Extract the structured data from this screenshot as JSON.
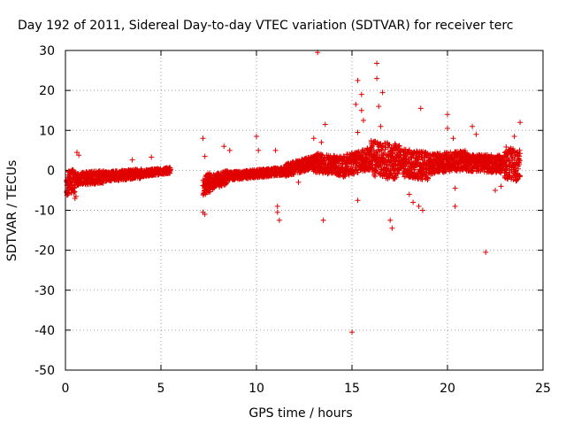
{
  "chart_data": {
    "type": "scatter",
    "title": "Day 192 of 2011, Sidereal Day-to-day VTEC variation (SDTVAR) for receiver terc",
    "xlabel": "GPS time / hours",
    "ylabel": "SDTVAR / TECUs",
    "xlim": [
      0,
      25
    ],
    "ylim": [
      -50,
      30
    ],
    "xticks": [
      0,
      5,
      10,
      15,
      20,
      25
    ],
    "yticks": [
      -50,
      -40,
      -30,
      -20,
      -10,
      0,
      10,
      20,
      30
    ],
    "grid": true,
    "marker": "+",
    "color": "#e00000",
    "bands": [
      {
        "x_start": 0.05,
        "x_end": 0.5,
        "center_start": -3.5,
        "center_end": -2.5,
        "spread": 3.0
      },
      {
        "x_start": 0.5,
        "x_end": 2.0,
        "center_start": -2.2,
        "center_end": -1.6,
        "spread": 1.6
      },
      {
        "x_start": 2.0,
        "x_end": 4.0,
        "center_start": -1.6,
        "center_end": -0.8,
        "spread": 1.2
      },
      {
        "x_start": 4.0,
        "x_end": 5.5,
        "center_start": -0.8,
        "center_end": 0.0,
        "spread": 0.8
      },
      {
        "x_start": 7.2,
        "x_end": 7.6,
        "center_start": -4.0,
        "center_end": -3.0,
        "spread": 2.5
      },
      {
        "x_start": 7.6,
        "x_end": 8.5,
        "center_start": -3.0,
        "center_end": -1.8,
        "spread": 1.8
      },
      {
        "x_start": 8.5,
        "x_end": 10.0,
        "center_start": -1.5,
        "center_end": -0.8,
        "spread": 1.0
      },
      {
        "x_start": 10.0,
        "x_end": 11.5,
        "center_start": -0.8,
        "center_end": -0.2,
        "spread": 1.0
      },
      {
        "x_start": 11.5,
        "x_end": 13.0,
        "center_start": 0.0,
        "center_end": 2.0,
        "spread": 1.6
      },
      {
        "x_start": 13.0,
        "x_end": 14.5,
        "center_start": 2.0,
        "center_end": 1.0,
        "spread": 2.4
      },
      {
        "x_start": 14.5,
        "x_end": 16.0,
        "center_start": 1.0,
        "center_end": 3.0,
        "spread": 2.8
      },
      {
        "x_start": 16.0,
        "x_end": 17.5,
        "center_start": 3.0,
        "center_end": 2.0,
        "spread": 4.5
      },
      {
        "x_start": 17.5,
        "x_end": 19.0,
        "center_start": 2.0,
        "center_end": 1.0,
        "spread": 3.5
      },
      {
        "x_start": 19.0,
        "x_end": 21.0,
        "center_start": 1.5,
        "center_end": 2.5,
        "spread": 2.5
      },
      {
        "x_start": 21.0,
        "x_end": 23.0,
        "center_start": 2.0,
        "center_end": 1.5,
        "spread": 2.2
      },
      {
        "x_start": 23.0,
        "x_end": 23.8,
        "center_start": 2.0,
        "center_end": 1.0,
        "spread": 4.0
      }
    ],
    "outliers": [
      {
        "x": 0.6,
        "y": 4.5
      },
      {
        "x": 0.7,
        "y": 3.8
      },
      {
        "x": 0.5,
        "y": -7.0
      },
      {
        "x": 0.55,
        "y": -6.5
      },
      {
        "x": 3.5,
        "y": 2.6
      },
      {
        "x": 4.5,
        "y": 3.3
      },
      {
        "x": 7.2,
        "y": 8.0
      },
      {
        "x": 7.3,
        "y": 3.5
      },
      {
        "x": 7.2,
        "y": -10.5
      },
      {
        "x": 7.3,
        "y": -11.0
      },
      {
        "x": 8.3,
        "y": 6.0
      },
      {
        "x": 8.6,
        "y": 5.0
      },
      {
        "x": 10.0,
        "y": 8.5
      },
      {
        "x": 10.1,
        "y": 5.0
      },
      {
        "x": 11.0,
        "y": 5.0
      },
      {
        "x": 11.1,
        "y": -9.0
      },
      {
        "x": 11.2,
        "y": -12.5
      },
      {
        "x": 11.1,
        "y": -10.5
      },
      {
        "x": 12.2,
        "y": -3.0
      },
      {
        "x": 13.2,
        "y": 29.5
      },
      {
        "x": 13.0,
        "y": 8.0
      },
      {
        "x": 13.5,
        "y": -12.5
      },
      {
        "x": 13.6,
        "y": 11.5
      },
      {
        "x": 13.4,
        "y": 7.0
      },
      {
        "x": 15.0,
        "y": -40.5
      },
      {
        "x": 15.3,
        "y": 22.5
      },
      {
        "x": 15.2,
        "y": 16.5
      },
      {
        "x": 15.3,
        "y": 9.5
      },
      {
        "x": 15.3,
        "y": -7.5
      },
      {
        "x": 15.5,
        "y": 19.0
      },
      {
        "x": 15.6,
        "y": 12.5
      },
      {
        "x": 15.5,
        "y": 15.0
      },
      {
        "x": 16.3,
        "y": 26.8
      },
      {
        "x": 16.3,
        "y": 23.0
      },
      {
        "x": 16.4,
        "y": 16.0
      },
      {
        "x": 16.6,
        "y": 19.5
      },
      {
        "x": 16.5,
        "y": 11.0
      },
      {
        "x": 17.0,
        "y": -12.5
      },
      {
        "x": 17.1,
        "y": -14.5
      },
      {
        "x": 18.0,
        "y": -6.0
      },
      {
        "x": 18.2,
        "y": -8.0
      },
      {
        "x": 18.5,
        "y": -9.0
      },
      {
        "x": 18.6,
        "y": 15.5
      },
      {
        "x": 18.7,
        "y": -10.0
      },
      {
        "x": 20.0,
        "y": 14.0
      },
      {
        "x": 20.0,
        "y": 10.5
      },
      {
        "x": 20.3,
        "y": 8.0
      },
      {
        "x": 20.4,
        "y": -4.5
      },
      {
        "x": 20.4,
        "y": -9.0
      },
      {
        "x": 21.3,
        "y": 11.0
      },
      {
        "x": 21.5,
        "y": 9.0
      },
      {
        "x": 22.0,
        "y": -20.5
      },
      {
        "x": 22.5,
        "y": -5.0
      },
      {
        "x": 23.8,
        "y": 12.0
      },
      {
        "x": 23.5,
        "y": 8.5
      },
      {
        "x": 22.8,
        "y": -4.0
      }
    ]
  }
}
